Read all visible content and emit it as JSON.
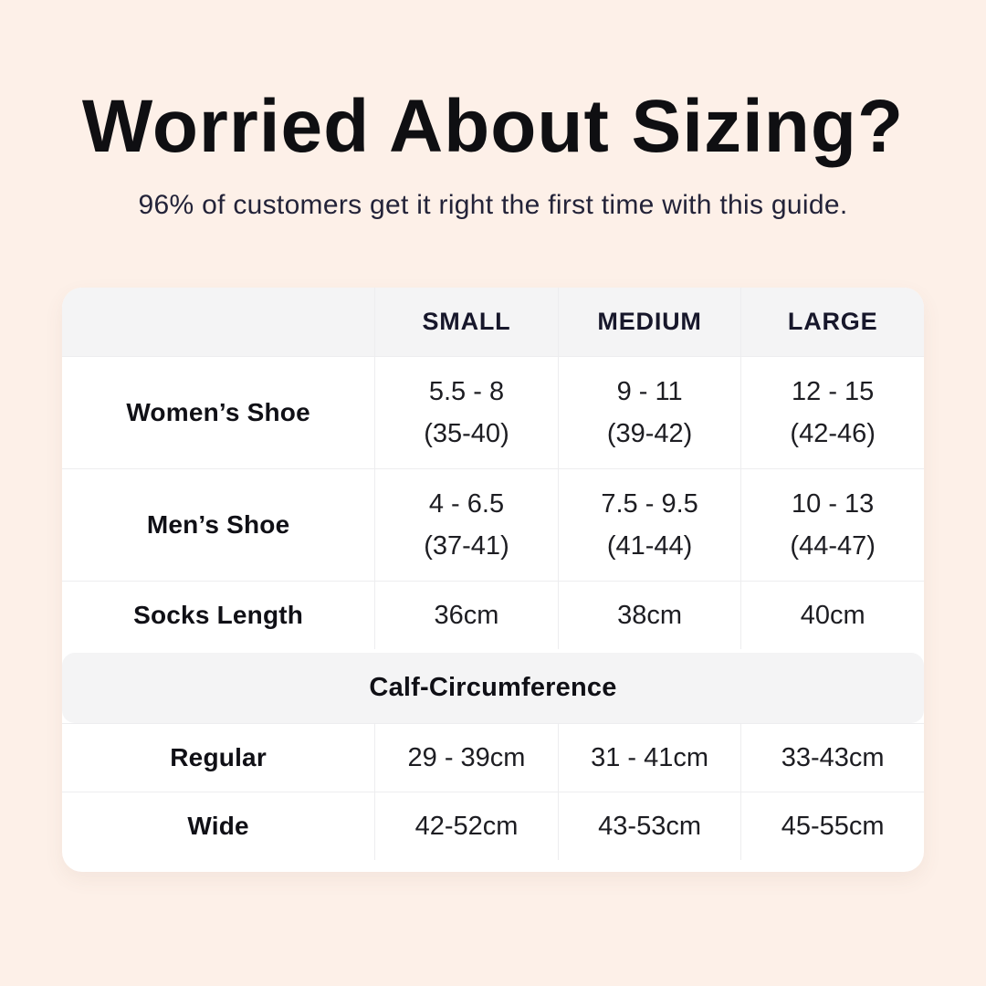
{
  "page": {
    "background_color": "#fdf0e8",
    "title": "Worried About Sizing?",
    "subtitle": "96% of customers get it right the first time with this guide.",
    "title_color": "#0f0f12",
    "subtitle_color": "#232339"
  },
  "table_style": {
    "card_color": "#ffffff",
    "band_color": "#f4f4f5",
    "divider_color": "#ededef",
    "text_color": "#1d1d22"
  },
  "chart_data": {
    "type": "table",
    "title": "Worried About Sizing?",
    "subtitle": "96% of customers get it right the first time with this guide.",
    "columns": [
      "",
      "SMALL",
      "MEDIUM",
      "LARGE"
    ],
    "sections": [
      {
        "rows": [
          {
            "label": "Women’s Shoe",
            "values": [
              "5.5 - 8 (35-40)",
              "9 - 11 (39-42)",
              "12 - 15 (42-46)"
            ]
          },
          {
            "label": "Men’s Shoe",
            "values": [
              "4 - 6.5 (37-41)",
              "7.5 - 9.5 (41-44)",
              "10 - 13 (44-47)"
            ]
          },
          {
            "label": "Socks Length",
            "values": [
              "36cm",
              "38cm",
              "40cm"
            ]
          }
        ]
      },
      {
        "header": "Calf-Circumference",
        "rows": [
          {
            "label": "Regular",
            "values": [
              "29 - 39cm",
              "31 - 41cm",
              "33-43cm"
            ]
          },
          {
            "label": "Wide",
            "values": [
              "42-52cm",
              "43-53cm",
              "45-55cm"
            ]
          }
        ]
      }
    ]
  }
}
